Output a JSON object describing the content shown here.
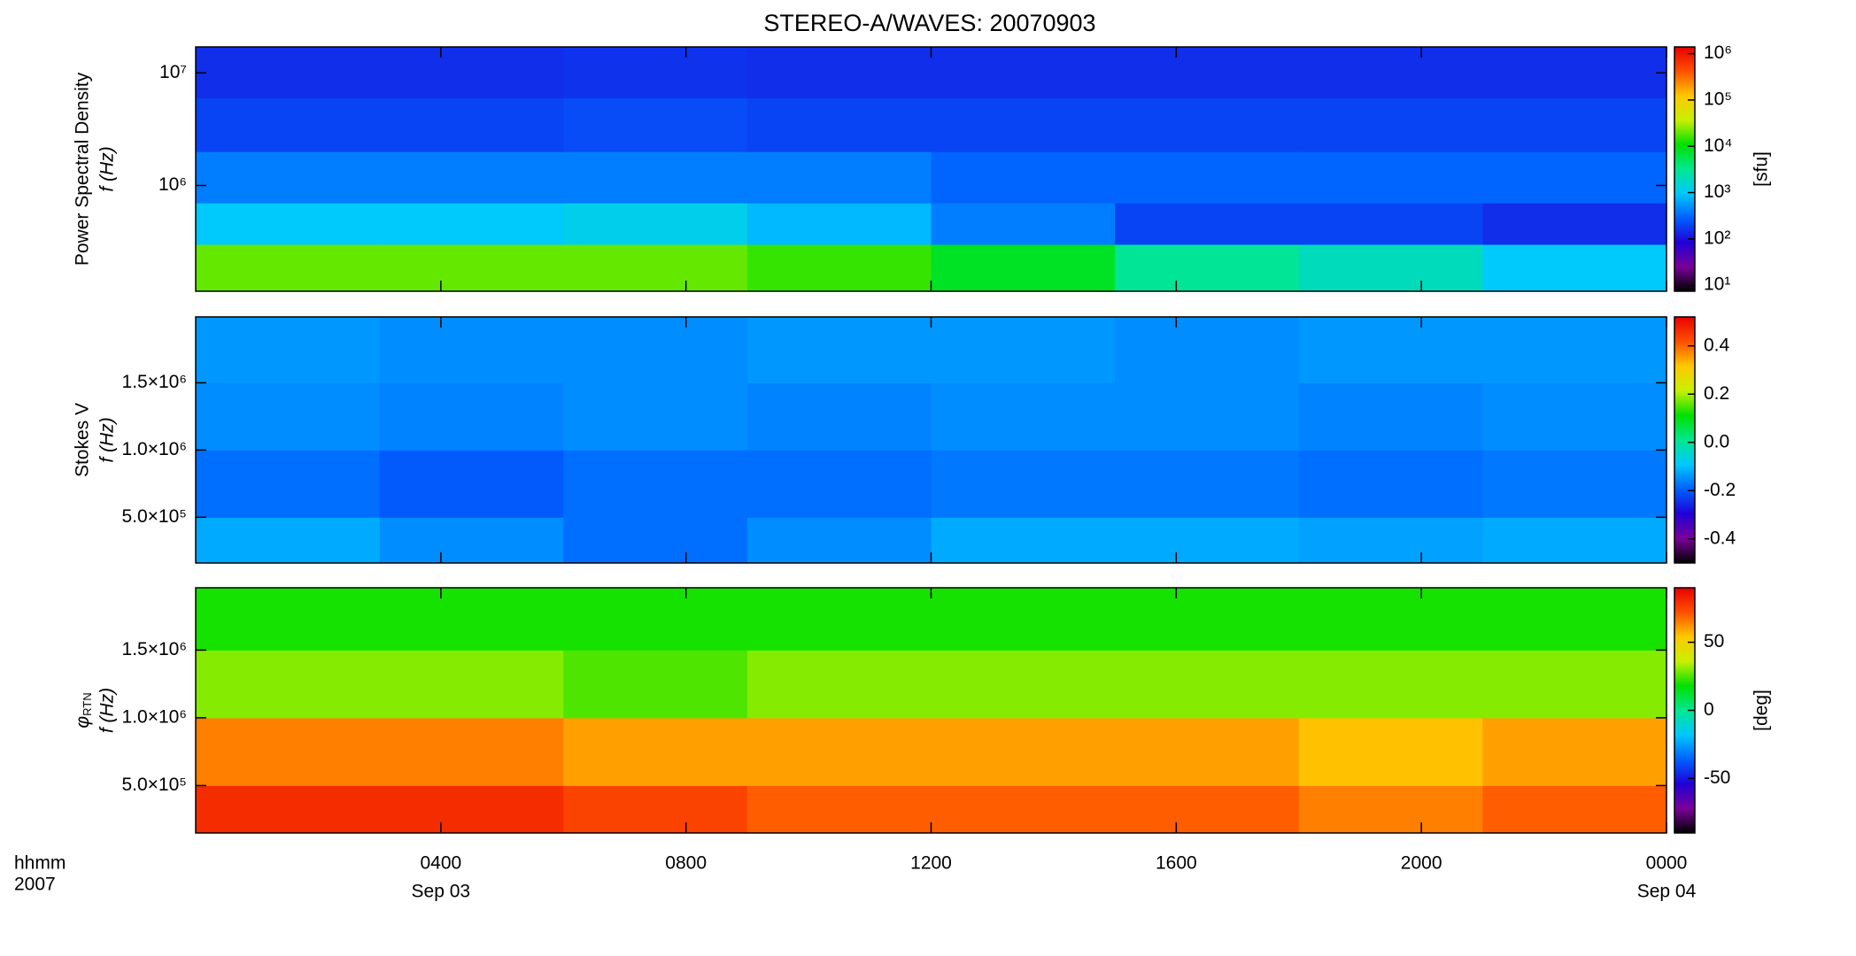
{
  "chart_data": [
    {
      "type": "heatmap",
      "title": "STEREO-A/WAVES: 20070903",
      "ylabel": [
        "Power Spectral Density",
        "f (Hz)"
      ],
      "ylog": true,
      "ylim": [
        115000,
        17000000
      ],
      "yticks": [
        {
          "value": 1000000,
          "label": "10⁶"
        },
        {
          "value": 10000000,
          "label": "10⁷"
        }
      ],
      "xlim": [
        0,
        24
      ],
      "time_bins": [
        0,
        3,
        6,
        9,
        12,
        15,
        18,
        21,
        24
      ],
      "freq_bins": [
        115000,
        300000,
        700000,
        2000000,
        6000000,
        17000000
      ],
      "values": [
        [
          20000,
          20000,
          20000,
          15000,
          8000,
          3000,
          2000,
          1000
        ],
        [
          1000,
          1000,
          1200,
          800,
          400,
          200,
          200,
          150
        ],
        [
          400,
          400,
          400,
          400,
          300,
          300,
          300,
          300
        ],
        [
          200,
          200,
          220,
          200,
          200,
          200,
          200,
          200
        ],
        [
          150,
          150,
          160,
          150,
          150,
          150,
          150,
          150
        ]
      ],
      "clog": true,
      "clim": [
        7.4,
        1400000
      ],
      "cticks": [
        {
          "value": 10,
          "label": "10¹"
        },
        {
          "value": 100,
          "label": "10²"
        },
        {
          "value": 1000,
          "label": "10³"
        },
        {
          "value": 10000,
          "label": "10⁴"
        },
        {
          "value": 100000,
          "label": "10⁵"
        },
        {
          "value": 1000000,
          "label": "10⁶"
        }
      ],
      "clabel": "[sfu]",
      "colormap": [
        "#000000",
        "#7a009a",
        "#2000d8",
        "#0060ff",
        "#00c8ff",
        "#00e890",
        "#00e000",
        "#c8f000",
        "#ffc800",
        "#ff5000",
        "#e80000"
      ]
    },
    {
      "type": "heatmap",
      "ylabel": [
        "Stokes V",
        "f (Hz)"
      ],
      "ylog": false,
      "ylim": [
        160000,
        1990000
      ],
      "yticks": [
        {
          "value": 500000,
          "label": "5.0×10⁵"
        },
        {
          "value": 1000000,
          "label": "1.0×10⁶"
        },
        {
          "value": 1500000,
          "label": "1.5×10⁶"
        }
      ],
      "xlim": [
        0,
        24
      ],
      "time_bins": [
        0,
        3,
        6,
        9,
        12,
        15,
        18,
        21,
        24
      ],
      "freq_bins": [
        160000,
        500000,
        1000000,
        1500000,
        1990000
      ],
      "values": [
        [
          -0.12,
          -0.15,
          -0.18,
          -0.15,
          -0.12,
          -0.12,
          -0.13,
          -0.12
        ],
        [
          -0.18,
          -0.2,
          -0.18,
          -0.18,
          -0.17,
          -0.17,
          -0.18,
          -0.17
        ],
        [
          -0.15,
          -0.16,
          -0.15,
          -0.16,
          -0.15,
          -0.15,
          -0.16,
          -0.15
        ],
        [
          -0.14,
          -0.15,
          -0.15,
          -0.14,
          -0.14,
          -0.15,
          -0.14,
          -0.14
        ]
      ],
      "clog": false,
      "clim": [
        -0.5,
        0.52
      ],
      "cticks": [
        -0.4,
        -0.2,
        {
          "value": 0,
          "label": "0.0"
        },
        0.2,
        0.4
      ],
      "colormap": [
        "#000000",
        "#7a009a",
        "#2000d8",
        "#0060ff",
        "#00c8ff",
        "#00e890",
        "#00e000",
        "#c8f000",
        "#ffc800",
        "#ff5000",
        "#e80000"
      ]
    },
    {
      "type": "heatmap",
      "ylabel": [
        "φ",
        "RTN",
        "f (Hz)"
      ],
      "ylog": false,
      "ylim": [
        150000,
        1960000
      ],
      "yticks": [
        {
          "value": 500000,
          "label": "5.0×10⁵"
        },
        {
          "value": 1000000,
          "label": "1.0×10⁶"
        },
        {
          "value": 1500000,
          "label": "1.5×10⁶"
        }
      ],
      "xlim": [
        0,
        24
      ],
      "time_bins": [
        0,
        3,
        6,
        9,
        12,
        15,
        18,
        21,
        24
      ],
      "freq_bins": [
        150000,
        500000,
        1000000,
        1500000,
        1960000
      ],
      "values": [
        [
          80,
          80,
          75,
          70,
          70,
          70,
          65,
          70
        ],
        [
          65,
          65,
          60,
          60,
          60,
          60,
          55,
          60
        ],
        [
          30,
          30,
          25,
          30,
          30,
          30,
          30,
          30
        ],
        [
          20,
          20,
          20,
          20,
          20,
          20,
          20,
          20
        ]
      ],
      "clog": false,
      "clim": [
        -90,
        90
      ],
      "cticks": [
        -50,
        0,
        50
      ],
      "clabel": "[deg]",
      "colormap": [
        "#000000",
        "#7a009a",
        "#2000d8",
        "#0060ff",
        "#00c8ff",
        "#00e890",
        "#00e000",
        "#c8f000",
        "#ffc800",
        "#ff5000",
        "#e80000"
      ],
      "xticks": [
        {
          "value": 4,
          "label": "0400"
        },
        {
          "value": 8,
          "label": "0800"
        },
        {
          "value": 12,
          "label": "1200"
        },
        {
          "value": 16,
          "label": "1600"
        },
        {
          "value": 20,
          "label": "2000"
        },
        {
          "value": 24,
          "label": "0000"
        }
      ],
      "date_labels": [
        {
          "value": 4,
          "label": "Sep 03"
        },
        {
          "value": 24,
          "label": "Sep 04"
        }
      ],
      "xlabel": "hhmm",
      "year": "2007"
    }
  ]
}
